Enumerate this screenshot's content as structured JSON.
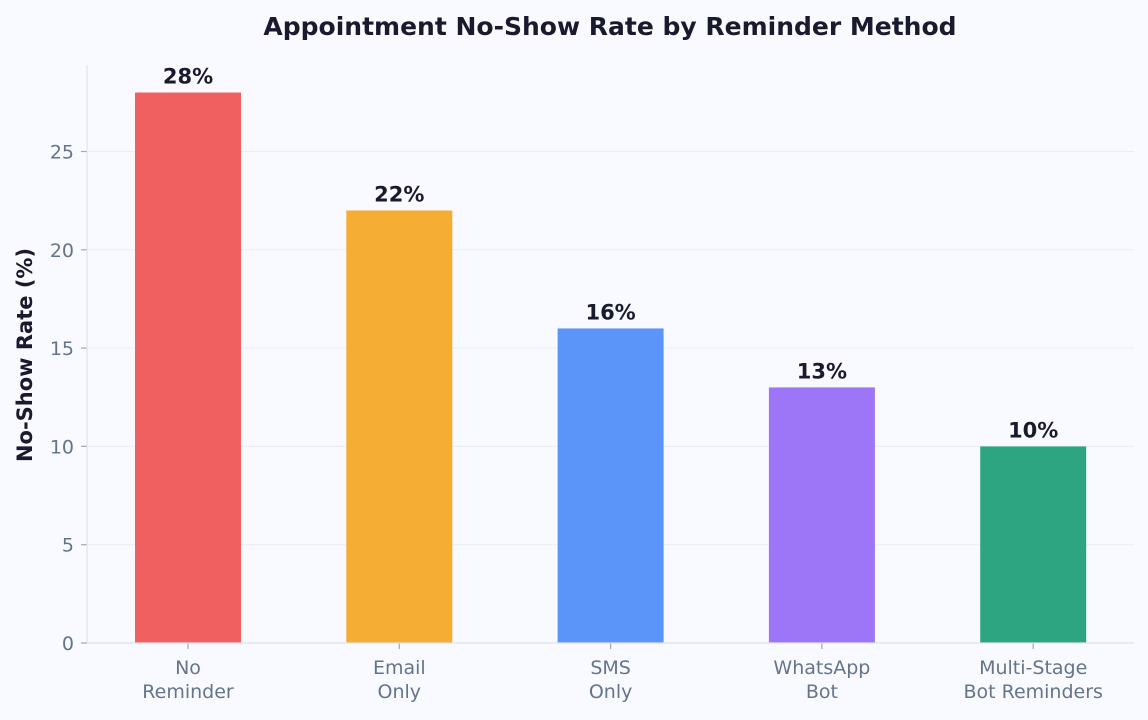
{
  "chart_data": {
    "type": "bar",
    "title": "Appointment No-Show Rate by Reminder Method",
    "ylabel": "No-Show Rate (%)",
    "xlabel": "",
    "ylim": [
      0,
      29.4
    ],
    "yticks": [
      0,
      5,
      10,
      15,
      20,
      25
    ],
    "grid": true,
    "categories": [
      [
        "No",
        "Reminder"
      ],
      [
        "Email",
        "Only"
      ],
      [
        "SMS",
        "Only"
      ],
      [
        "WhatsApp",
        "Bot"
      ],
      [
        "Multi-Stage",
        "Bot Reminders"
      ]
    ],
    "values": [
      28,
      22,
      16,
      13,
      10
    ],
    "data_labels": [
      "28%",
      "22%",
      "16%",
      "13%",
      "10%"
    ],
    "colors": [
      "#f06060",
      "#f6ad33",
      "#5b95f9",
      "#9c76f7",
      "#2da580"
    ]
  }
}
